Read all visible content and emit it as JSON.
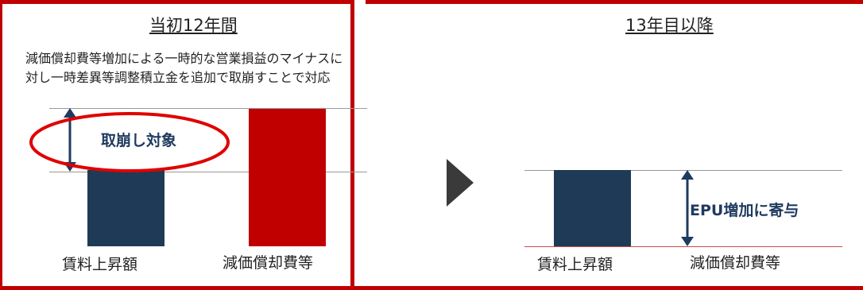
{
  "left": {
    "title": "当初12年間",
    "description_line1": "減価償却費等増加による一時的な営業損益のマイナスに",
    "description_line2": "対し一時差異等調整積立金を追加で取崩すことで対応",
    "annotation": "取崩し対象",
    "bar1_label": "賃料上昇額",
    "bar2_label": "減価償却費等"
  },
  "right": {
    "title": "13年目以降",
    "annotation": "EPU増加に寄与",
    "bar1_label": "賃料上昇額",
    "bar2_label": "減価償却費等"
  },
  "colors": {
    "frame": "#c00000",
    "navy_bar": "#1f3a56",
    "red_bar": "#c00000",
    "arrow": "#1f3a5f",
    "gray_line": "#999999",
    "red_line": "#c0504d"
  },
  "icons": {
    "transition": "right-triangle-arrow-icon",
    "double_arrow": "vertical-double-arrow-icon"
  }
}
